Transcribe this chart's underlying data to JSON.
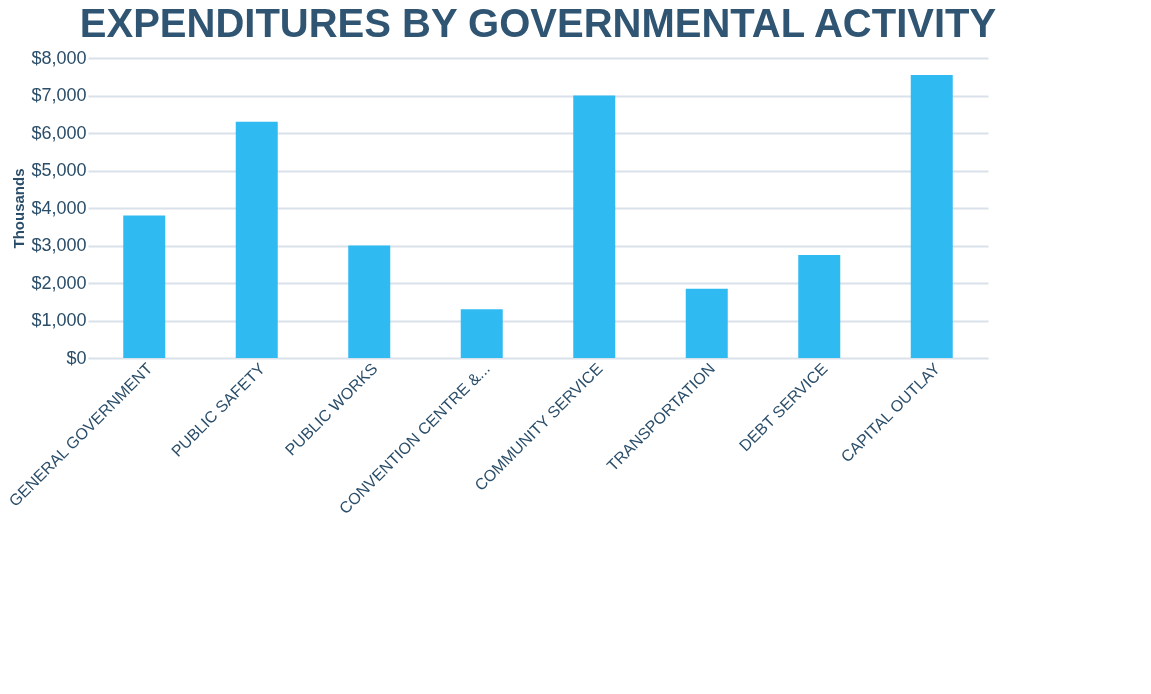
{
  "chart_data": {
    "type": "bar",
    "title": "EXPENDITURES BY GOVERNMENTAL ACTIVITY",
    "ylabel": "Thousands",
    "categories": [
      "GENERAL GOVERNMENT",
      "PUBLIC SAFETY",
      "PUBLIC WORKS",
      "CONVENTION CENTRE &...",
      "COMMUNITY SERVICE",
      "TRANSPORTATION",
      "DEBT SERVICE",
      "CAPITAL OUTLAY"
    ],
    "values": [
      3800,
      6300,
      3000,
      1300,
      7000,
      1850,
      2750,
      7550
    ],
    "color": "#2fbaf2",
    "ylim": [
      0,
      8000
    ],
    "yticks": [
      {
        "value": 0,
        "label": "$0"
      },
      {
        "value": 1000,
        "label": "$1,000"
      },
      {
        "value": 2000,
        "label": "$2,000"
      },
      {
        "value": 3000,
        "label": "$3,000"
      },
      {
        "value": 4000,
        "label": "$4,000"
      },
      {
        "value": 5000,
        "label": "$5,000"
      },
      {
        "value": 6000,
        "label": "$6,000"
      },
      {
        "value": 7000,
        "label": "$7,000"
      },
      {
        "value": 8000,
        "label": "$8,000"
      }
    ],
    "grid": "y"
  }
}
